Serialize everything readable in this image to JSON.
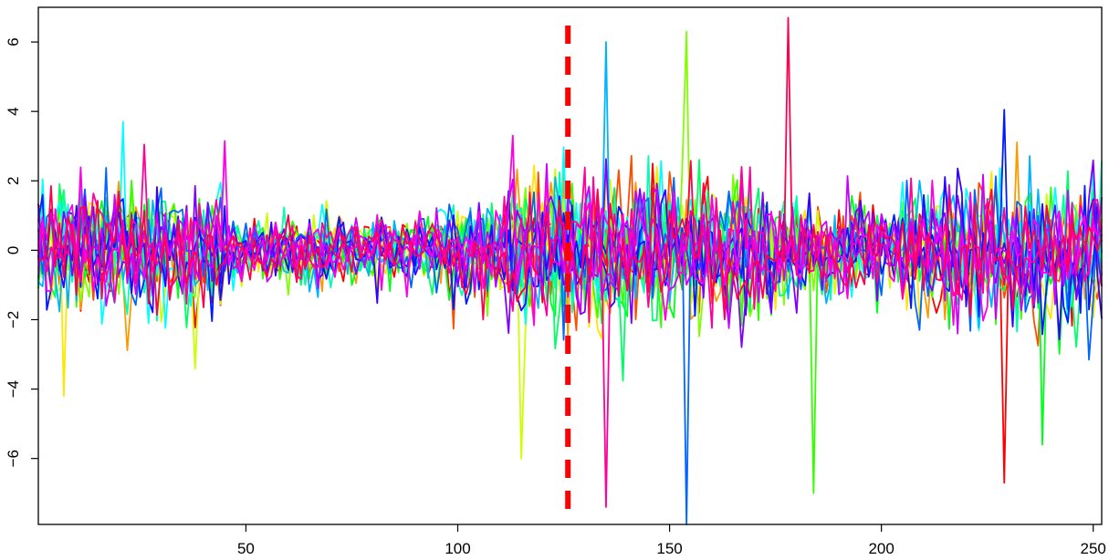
{
  "chart_data": {
    "type": "line",
    "title": "",
    "xlabel": "",
    "ylabel": "",
    "xlim": [
      1,
      252
    ],
    "ylim": [
      -7.9,
      7.0
    ],
    "x_ticks": [
      50,
      100,
      150,
      200,
      250
    ],
    "x_tick_labels": [
      "50",
      "100",
      "150",
      "200",
      "250"
    ],
    "y_ticks": [
      -6,
      -4,
      -2,
      0,
      2,
      4,
      6
    ],
    "y_tick_labels": [
      "−6",
      "−4",
      "−2",
      "0",
      "2",
      "4",
      "6"
    ],
    "grid": false,
    "legend": "none",
    "num_series": 20,
    "series_length": 252,
    "series_colors": [
      "#FF0000",
      "#FF4D00",
      "#FF9900",
      "#FFE600",
      "#CCFF00",
      "#80FF00",
      "#33FF00",
      "#00FF19",
      "#00FF66",
      "#00FFB2",
      "#00FFFF",
      "#00B3FF",
      "#0066FF",
      "#001AFF",
      "#3300FF",
      "#8000FF",
      "#CC00FF",
      "#FF00E6",
      "#FF0099",
      "#FF004D"
    ],
    "vline": {
      "x": 126,
      "color": "#FF0000",
      "style": "dashed"
    },
    "notable_points": [
      {
        "x": 7,
        "y": -4.2
      },
      {
        "x": 21,
        "y": 3.7
      },
      {
        "x": 45,
        "y": 3.15
      },
      {
        "x": 115,
        "y": -6.0
      },
      {
        "x": 135,
        "y": 6.0
      },
      {
        "x": 135,
        "y": -7.4
      },
      {
        "x": 154,
        "y": 6.3
      },
      {
        "x": 154,
        "y": -7.9
      },
      {
        "x": 178,
        "y": 6.7
      },
      {
        "x": 184,
        "y": -7.0
      },
      {
        "x": 229,
        "y": 4.05
      },
      {
        "x": 229,
        "y": -6.7
      },
      {
        "x": 238,
        "y": -5.6
      }
    ]
  }
}
